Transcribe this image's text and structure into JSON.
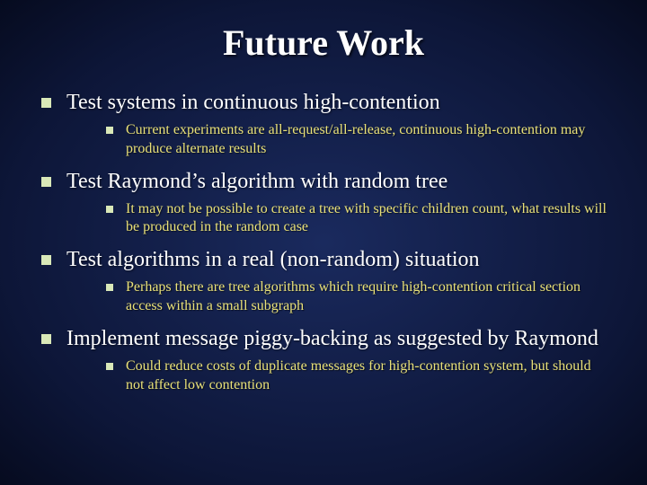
{
  "slide": {
    "title": "Future Work",
    "background_gradient": {
      "center": "#1a2a5e",
      "mid": "#0d1638",
      "edge": "#060b1f"
    },
    "title_color": "#ffffff",
    "title_fontsize": 40,
    "body_color": "#ffffff",
    "sub_color": "#e9e179",
    "bullet_color": "#d9e8b8",
    "font_family": "Times New Roman",
    "bullets": [
      {
        "text": "Test systems in continuous high-contention",
        "sub": [
          "Current experiments are all-request/all-release, continuous high-contention may produce alternate results"
        ]
      },
      {
        "text": "Test Raymond’s algorithm with random tree",
        "sub": [
          "It may not be possible to create a tree with specific children count, what results will be produced in the random case"
        ]
      },
      {
        "text": "Test algorithms in a real (non-random) situation",
        "sub": [
          "Perhaps there are tree algorithms which require high-contention critical section access within a small subgraph"
        ]
      },
      {
        "text": "Implement message piggy-backing as suggested by Raymond",
        "sub": [
          "Could reduce costs of duplicate messages for high-contention system, but should not affect low contention"
        ]
      }
    ]
  }
}
